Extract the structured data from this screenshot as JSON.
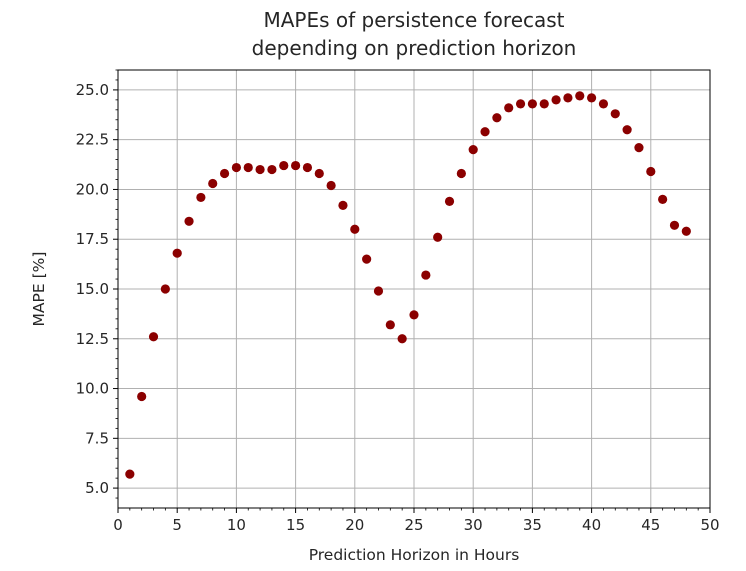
{
  "chart_data": {
    "type": "scatter",
    "title_lines": [
      "MAPEs of persistence forecast",
      "depending on prediction horizon"
    ],
    "xlabel": "Prediction Horizon in Hours",
    "ylabel": "MAPE [%]",
    "xlim": [
      0,
      50
    ],
    "ylim": [
      4.0,
      26.0
    ],
    "xticks": [
      0,
      5,
      10,
      15,
      20,
      25,
      30,
      35,
      40,
      45,
      50
    ],
    "xtick_labels": [
      "0",
      "5",
      "10",
      "15",
      "20",
      "25",
      "30",
      "35",
      "40",
      "45",
      "50"
    ],
    "yticks": [
      5.0,
      7.5,
      10.0,
      12.5,
      15.0,
      17.5,
      20.0,
      22.5,
      25.0
    ],
    "ytick_labels": [
      "5.0",
      "7.5",
      "10.0",
      "12.5",
      "15.0",
      "17.5",
      "20.0",
      "22.5",
      "25.0"
    ],
    "grid": true,
    "marker_color": "#8b0000",
    "x": [
      1,
      2,
      3,
      4,
      5,
      6,
      7,
      8,
      9,
      10,
      11,
      12,
      13,
      14,
      15,
      16,
      17,
      18,
      19,
      20,
      21,
      22,
      23,
      24,
      25,
      26,
      27,
      28,
      29,
      30,
      31,
      32,
      33,
      34,
      35,
      36,
      37,
      38,
      39,
      40,
      41,
      42,
      43,
      44,
      45,
      46,
      47,
      48
    ],
    "y": [
      5.7,
      9.6,
      12.6,
      15.0,
      16.8,
      18.4,
      19.6,
      20.3,
      20.8,
      21.1,
      21.1,
      21.0,
      21.0,
      21.2,
      21.2,
      21.1,
      20.8,
      20.2,
      19.2,
      18.0,
      16.5,
      14.9,
      13.2,
      12.5,
      13.7,
      15.7,
      17.6,
      19.4,
      20.8,
      22.0,
      22.9,
      23.6,
      24.1,
      24.3,
      24.3,
      24.3,
      24.5,
      24.6,
      24.7,
      24.6,
      24.3,
      23.8,
      23.0,
      22.1,
      20.9,
      19.5,
      18.2,
      17.9
    ]
  }
}
